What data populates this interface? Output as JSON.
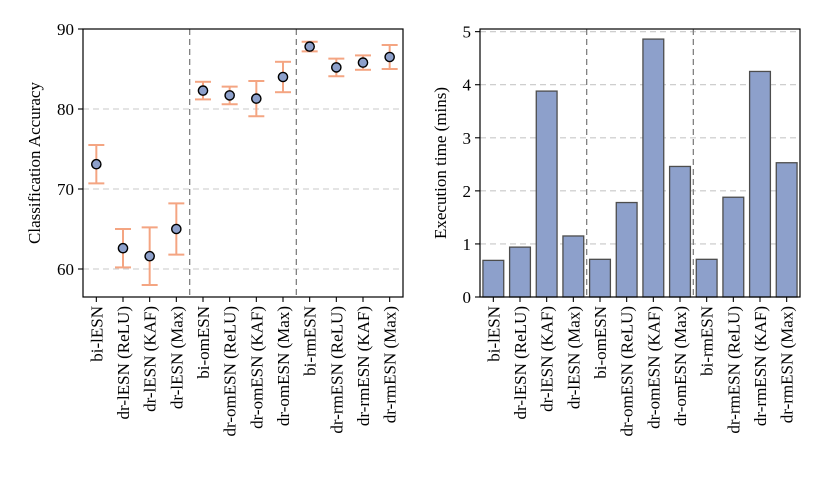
{
  "colors": {
    "errorbar": "#f4a582",
    "marker_face": "#8da0cb",
    "bar_fill": "#8da0cb",
    "bar_edge": "#4d4d4d",
    "grid": "#c8c8c8",
    "separator": "#808080",
    "axis": "#000000"
  },
  "chart_data": [
    {
      "type": "scatter",
      "subtype": "errorbar",
      "title": "",
      "xlabel": "",
      "ylabel": "Classification Accuracy",
      "categories": [
        "bi-lESN",
        "dr-lESN (ReLU)",
        "dr-lESN (KAF)",
        "dr-lESN (Max)",
        "bi-omESN",
        "dr-omESN (ReLU)",
        "dr-omESN (KAF)",
        "dr-omESN (Max)",
        "bi-rmESN",
        "dr-rmESN (ReLU)",
        "dr-rmESN (KAF)",
        "dr-rmESN (Max)"
      ],
      "values": [
        73.1,
        62.6,
        61.6,
        65.0,
        82.3,
        81.7,
        81.3,
        84.0,
        87.8,
        85.2,
        85.8,
        86.5
      ],
      "errors": [
        2.4,
        2.4,
        3.6,
        3.2,
        1.1,
        1.1,
        2.2,
        1.9,
        0.6,
        1.1,
        0.9,
        1.5
      ],
      "ylim": [
        56.5,
        90
      ],
      "yticks": [
        60,
        70,
        80,
        90
      ],
      "separators_after": [
        3,
        7
      ],
      "grid": "horizontal dashed"
    },
    {
      "type": "bar",
      "title": "",
      "xlabel": "",
      "ylabel": "Execution time (mins)",
      "categories": [
        "bi-lESN",
        "dr-lESN (ReLU)",
        "dr-lESN (KAF)",
        "dr-lESN (Max)",
        "bi-omESN",
        "dr-omESN (ReLU)",
        "dr-omESN (KAF)",
        "dr-omESN (Max)",
        "bi-rmESN",
        "dr-rmESN (ReLU)",
        "dr-rmESN (KAF)",
        "dr-rmESN (Max)"
      ],
      "values": [
        0.69,
        0.94,
        3.88,
        1.15,
        0.71,
        1.78,
        4.86,
        2.46,
        0.71,
        1.88,
        4.25,
        2.53
      ],
      "ylim": [
        0,
        5.05
      ],
      "yticks": [
        0,
        1,
        2,
        3,
        4,
        5
      ],
      "separators_after": [
        3,
        7
      ],
      "grid": "horizontal dashed"
    }
  ]
}
